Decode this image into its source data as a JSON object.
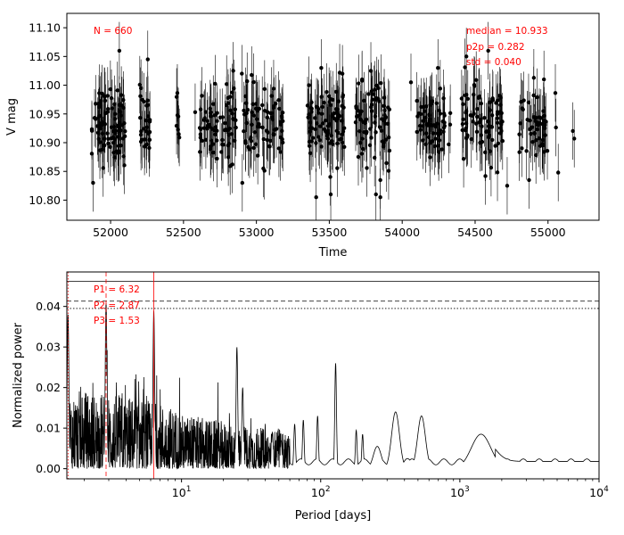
{
  "chart_data": [
    {
      "type": "scatter",
      "xlabel": "Time",
      "ylabel": "V mag",
      "xlim": [
        51700,
        55350
      ],
      "ylim": [
        10.765,
        11.125
      ],
      "xticks": [
        {
          "value": 52000,
          "label": "52000"
        },
        {
          "value": 52500,
          "label": "52500"
        },
        {
          "value": 53000,
          "label": "53000"
        },
        {
          "value": 53500,
          "label": "53500"
        },
        {
          "value": 54000,
          "label": "54000"
        },
        {
          "value": 54500,
          "label": "54500"
        },
        {
          "value": 55000,
          "label": "55000"
        }
      ],
      "yticks": [
        {
          "value": 10.8,
          "label": "10.80"
        },
        {
          "value": 10.85,
          "label": "10.85"
        },
        {
          "value": 10.9,
          "label": "10.90"
        },
        {
          "value": 10.95,
          "label": "10.95"
        },
        {
          "value": 11.0,
          "label": "11.00"
        },
        {
          "value": 11.05,
          "label": "11.05"
        },
        {
          "value": 11.1,
          "label": "11.10"
        }
      ],
      "annotations": {
        "n": "N = 660",
        "median": "median = 10.933",
        "p2p": "p2p = 0.282",
        "std": "std = 0.040"
      },
      "median": 10.933,
      "std": 0.04,
      "error_bar": 0.05,
      "season_windows": [
        [
          51870,
          52100,
          90
        ],
        [
          52200,
          52270,
          28
        ],
        [
          52450,
          52480,
          8
        ],
        [
          52580,
          52585,
          1
        ],
        [
          52610,
          52860,
          75
        ],
        [
          52900,
          53200,
          80
        ],
        [
          53350,
          53610,
          85
        ],
        [
          53680,
          53920,
          75
        ],
        [
          54100,
          54330,
          65
        ],
        [
          54400,
          54690,
          85
        ],
        [
          54800,
          55000,
          50
        ],
        [
          55050,
          55060,
          2
        ],
        [
          55170,
          55175,
          1
        ]
      ],
      "outliers": [
        {
          "x": 52060,
          "y": 11.06
        },
        {
          "x": 52255,
          "y": 11.045
        },
        {
          "x": 53360,
          "y": 11.0
        },
        {
          "x": 53445,
          "y": 11.03
        },
        {
          "x": 53590,
          "y": 11.02
        },
        {
          "x": 53785,
          "y": 11.025
        },
        {
          "x": 54245,
          "y": 11.03
        },
        {
          "x": 54440,
          "y": 11.05
        },
        {
          "x": 54590,
          "y": 11.06
        },
        {
          "x": 54060,
          "y": 11.005
        },
        {
          "x": 55180,
          "y": 10.907
        },
        {
          "x": 51880,
          "y": 10.83
        },
        {
          "x": 53410,
          "y": 10.805
        },
        {
          "x": 53510,
          "y": 10.81
        },
        {
          "x": 53820,
          "y": 10.81
        },
        {
          "x": 53850,
          "y": 10.835
        },
        {
          "x": 53850,
          "y": 10.805
        },
        {
          "x": 54720,
          "y": 10.825
        },
        {
          "x": 54870,
          "y": 10.835
        },
        {
          "x": 55070,
          "y": 10.848
        }
      ]
    },
    {
      "type": "line",
      "xlabel": "Period [days]",
      "ylabel": "Normalized power",
      "xscale": "log",
      "xlim": [
        1.5,
        10000
      ],
      "ylim": [
        -0.0025,
        0.0485
      ],
      "xticks": [
        {
          "value": 10,
          "base": "10",
          "exp": "1"
        },
        {
          "value": 100,
          "base": "10",
          "exp": "2"
        },
        {
          "value": 1000,
          "base": "10",
          "exp": "3"
        },
        {
          "value": 10000,
          "base": "10",
          "exp": "4"
        }
      ],
      "yticks": [
        {
          "value": 0.0,
          "label": "0.00"
        },
        {
          "value": 0.01,
          "label": "0.01"
        },
        {
          "value": 0.02,
          "label": "0.02"
        },
        {
          "value": 0.03,
          "label": "0.03"
        },
        {
          "value": 0.04,
          "label": "0.04"
        }
      ],
      "annotations": {
        "p1": "P1 = 6.32",
        "p2": "P2 = 2.87",
        "p3": "P3 = 1.53"
      },
      "significance_levels": [
        {
          "value": 0.0462,
          "style": "solid"
        },
        {
          "value": 0.0413,
          "style": "dashed"
        },
        {
          "value": 0.0395,
          "style": "dotted"
        }
      ],
      "periods": [
        {
          "value": 6.32,
          "style": "solid"
        },
        {
          "value": 2.87,
          "style": "dashed"
        },
        {
          "value": 1.53,
          "style": "dotted"
        }
      ],
      "noise_floor": 0.0018,
      "peaks": [
        {
          "period": 1.53,
          "power": 0.038
        },
        {
          "period": 2.87,
          "power": 0.041
        },
        {
          "period": 6.32,
          "power": 0.039
        },
        {
          "period": 25.0,
          "power": 0.03
        },
        {
          "period": 27.5,
          "power": 0.02
        },
        {
          "period": 45,
          "power": 0.009
        },
        {
          "period": 52,
          "power": 0.007
        },
        {
          "period": 65,
          "power": 0.011
        },
        {
          "period": 75,
          "power": 0.012
        },
        {
          "period": 95,
          "power": 0.013
        },
        {
          "period": 128,
          "power": 0.026
        },
        {
          "period": 180,
          "power": 0.0095
        },
        {
          "period": 200,
          "power": 0.0085
        },
        {
          "period": 255,
          "power": 0.0055
        },
        {
          "period": 345,
          "power": 0.014
        },
        {
          "period": 420,
          "power": 0.0025
        },
        {
          "period": 530,
          "power": 0.013
        },
        {
          "period": 820,
          "power": 0.0008
        },
        {
          "period": 1420,
          "power": 0.0085
        }
      ]
    }
  ]
}
